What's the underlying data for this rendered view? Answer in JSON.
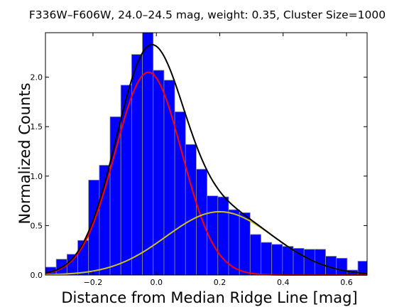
{
  "chart_data": {
    "type": "bar",
    "title": "F336W–F606W, 24.0–24.5 mag, weight: 0.35, Cluster Size=1000",
    "xlabel": "Distance from Median Ridge Line [mag]",
    "ylabel": "Normalized Counts",
    "xlim": [
      -0.35,
      0.665
    ],
    "ylim": [
      0.0,
      2.45
    ],
    "x_ticks": [
      -0.2,
      0.0,
      0.2,
      0.4,
      0.6
    ],
    "x_tick_labels": [
      "−0.2",
      "0.0",
      "0.2",
      "0.4",
      "0.6"
    ],
    "y_ticks": [
      0.0,
      0.5,
      1.0,
      1.5,
      2.0
    ],
    "y_tick_labels": [
      "0.0",
      "0.5",
      "1.0",
      "1.5",
      "2.0"
    ],
    "grid": false,
    "bin_edges": [
      -0.35,
      -0.316,
      -0.282,
      -0.248,
      -0.214,
      -0.18,
      -0.146,
      -0.112,
      -0.078,
      -0.044,
      -0.01,
      0.024,
      0.058,
      0.092,
      0.126,
      0.16,
      0.194,
      0.228,
      0.262,
      0.296,
      0.33,
      0.364,
      0.398,
      0.432,
      0.466,
      0.5,
      0.534,
      0.568,
      0.602,
      0.636,
      0.67
    ],
    "values": [
      0.08,
      0.16,
      0.21,
      0.35,
      0.96,
      1.11,
      1.6,
      1.92,
      2.23,
      2.45,
      2.07,
      1.97,
      1.65,
      1.32,
      1.07,
      0.8,
      0.79,
      0.66,
      0.63,
      0.41,
      0.33,
      0.31,
      0.29,
      0.27,
      0.26,
      0.26,
      0.19,
      0.17,
      0.05,
      0.14
    ],
    "bar_color": "#0000ff",
    "series": [
      {
        "type": "gaussian",
        "color": "#ff0000",
        "peak": 2.05,
        "mean": -0.025,
        "sigma": 0.105
      },
      {
        "type": "gaussian",
        "color": "#c9c21e",
        "peak": 0.64,
        "mean": 0.2,
        "sigma": 0.17
      },
      {
        "type": "sum",
        "color": "#000000"
      }
    ]
  }
}
